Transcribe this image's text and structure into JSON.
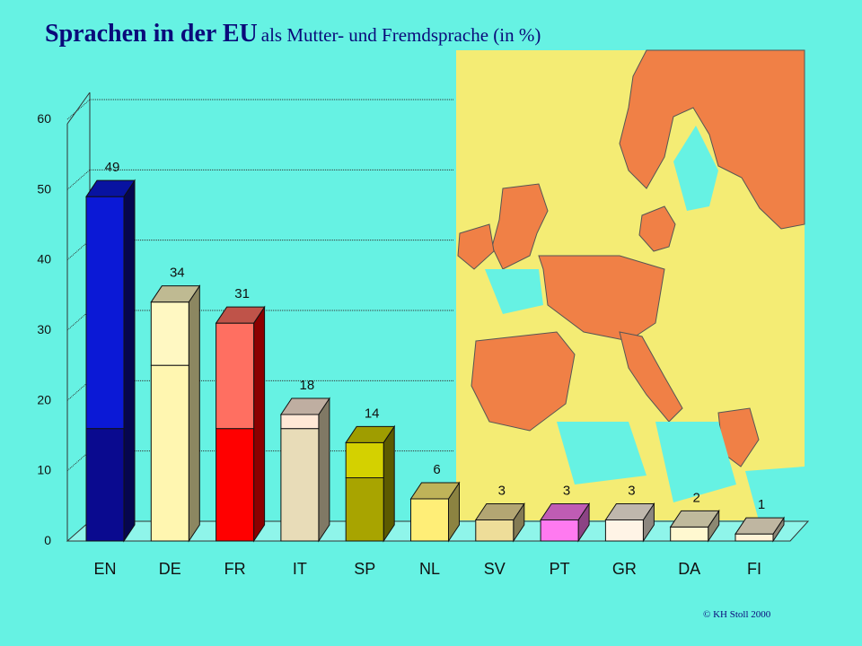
{
  "title": "Sprachen in der EU",
  "subtitle": "als Mutter- und Fremdsprache (in %)",
  "copyright": "© KH Stoll 2000",
  "chart_data": {
    "type": "bar",
    "stacked": true,
    "categories": [
      "EN",
      "DE",
      "FR",
      "IT",
      "SP",
      "NL",
      "SV",
      "PT",
      "GR",
      "DA",
      "FI"
    ],
    "totals": [
      49,
      34,
      31,
      18,
      14,
      6,
      3,
      3,
      3,
      2,
      1
    ],
    "lower_segment": [
      16,
      25,
      16,
      16,
      9,
      6,
      3,
      3,
      3,
      2,
      1
    ],
    "upper_segment": [
      33,
      9,
      15,
      2,
      5,
      0,
      0,
      0,
      0,
      0,
      0
    ],
    "data_labels": [
      "49",
      "34",
      "31",
      "18",
      "14",
      "6",
      "3",
      "3",
      "3",
      "2",
      "1"
    ],
    "ylim": [
      0,
      60
    ],
    "yticks": [
      0,
      10,
      20,
      30,
      40,
      50,
      60
    ],
    "grid": true,
    "colors": {
      "EN": {
        "lower": "#0a0a8f",
        "upper": "#0b19d6"
      },
      "DE": {
        "lower": "#fff6b0",
        "upper": "#fff8c2"
      },
      "FR": {
        "lower": "#ff0000",
        "upper": "#ff6f61"
      },
      "IT": {
        "lower": "#e8dcb8",
        "upper": "#ffe8d6"
      },
      "SP": {
        "lower": "#a8a400",
        "upper": "#d4d100"
      },
      "NL": {
        "lower": "#ffee77",
        "upper": "#ffee77"
      },
      "SV": {
        "lower": "#eedd99",
        "upper": "#eedd99"
      },
      "PT": {
        "lower": "#ff7af0",
        "upper": "#ff7af0"
      },
      "GR": {
        "lower": "#fff4e6",
        "upper": "#fff4e6"
      },
      "DA": {
        "lower": "#fff8d0",
        "upper": "#fff8d0"
      },
      "FI": {
        "lower": "#fff3d6",
        "upper": "#fff3d6"
      }
    }
  },
  "map": {
    "colors": {
      "highlight": "#f08046",
      "other": "#f4ec74",
      "sea": "#66f2e3",
      "border": "#555555"
    }
  }
}
